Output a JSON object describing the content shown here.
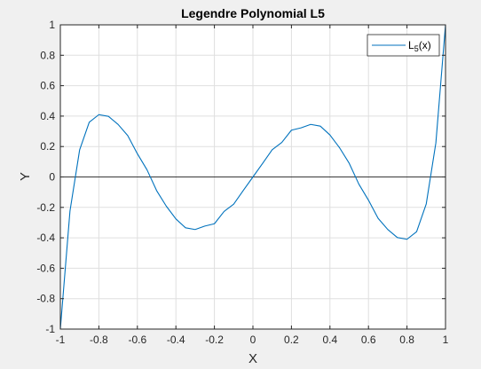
{
  "chart_data": {
    "type": "line",
    "title": "Legendre Polynomial L5",
    "xlabel": "X",
    "ylabel": "Y",
    "xlim": [
      -1,
      1
    ],
    "ylim": [
      -1,
      1
    ],
    "x_ticks": [
      -1,
      -0.8,
      -0.6,
      -0.4,
      -0.2,
      0,
      0.2,
      0.4,
      0.6,
      0.8,
      1
    ],
    "x_tick_labels": [
      "-1",
      "-0.8",
      "-0.6",
      "-0.4",
      "-0.2",
      "0",
      "0.2",
      "0.4",
      "0.6",
      "0.8",
      "1"
    ],
    "y_ticks": [
      -1,
      -0.8,
      -0.6,
      -0.4,
      -0.2,
      0,
      0.2,
      0.4,
      0.6,
      0.8,
      1
    ],
    "y_tick_labels": [
      "-1",
      "-0.8",
      "-0.6",
      "-0.4",
      "-0.2",
      "0",
      "0.2",
      "0.4",
      "0.6",
      "0.8",
      "1"
    ],
    "grid": true,
    "reference_line_y": 0,
    "legend_position": "top-right",
    "series": [
      {
        "name": "L5(x)",
        "legend_base": "L",
        "legend_sub": "5",
        "legend_suffix": "(x)",
        "color": "#0072bd",
        "x": [
          -1,
          -0.95,
          -0.9,
          -0.85,
          -0.8,
          -0.75,
          -0.7,
          -0.65,
          -0.6,
          -0.55,
          -0.5,
          -0.45,
          -0.4,
          -0.35,
          -0.3,
          -0.25,
          -0.2,
          -0.15,
          -0.1,
          -0.05,
          0,
          0.05,
          0.1,
          0.15,
          0.2,
          0.25,
          0.3,
          0.35,
          0.4,
          0.45,
          0.5,
          0.55,
          0.6,
          0.65,
          0.7,
          0.75,
          0.8,
          0.85,
          0.9,
          0.95,
          1
        ],
        "y": [
          -1,
          -0.2239,
          0.1772,
          0.3598,
          0.4096,
          0.3982,
          0.3451,
          0.2717,
          0.1526,
          0.047,
          -0.0898,
          -0.1917,
          -0.2758,
          -0.3343,
          -0.3454,
          -0.3228,
          -0.3075,
          -0.2269,
          -0.1789,
          -0.0888,
          0,
          0.0888,
          0.1789,
          0.2269,
          0.3075,
          0.3228,
          0.3454,
          0.3343,
          0.2758,
          0.1917,
          0.0898,
          -0.047,
          -0.1526,
          -0.2717,
          -0.3451,
          -0.3982,
          -0.4096,
          -0.3598,
          -0.1772,
          0.2239,
          1
        ]
      }
    ]
  }
}
